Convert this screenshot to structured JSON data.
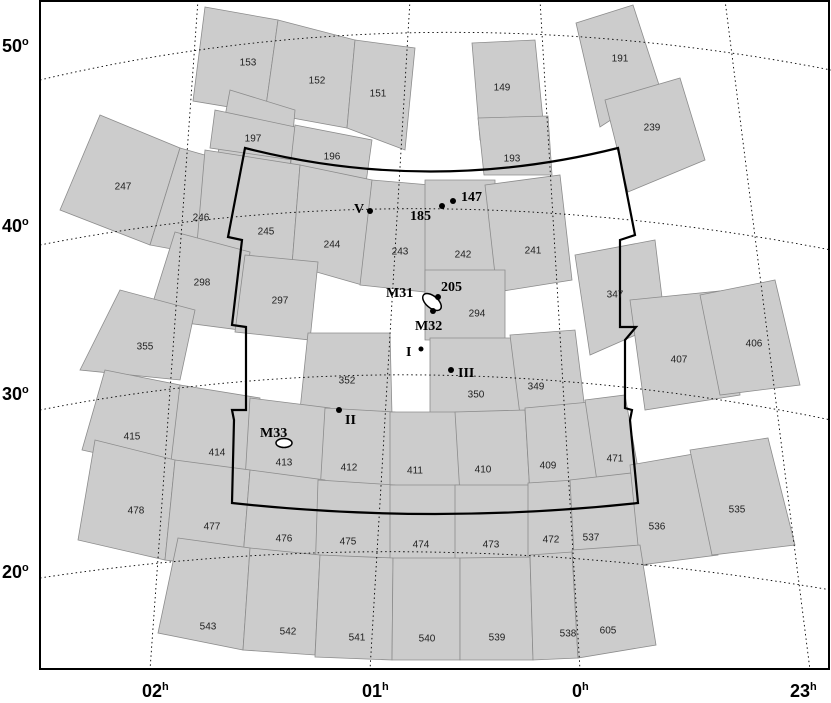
{
  "fields": [
    "153",
    "152",
    "151",
    "149",
    "191",
    "197",
    "196",
    "193",
    "239",
    "247",
    "246",
    "245",
    "244",
    "243",
    "242",
    "241",
    "185",
    "147",
    "205",
    "298",
    "297",
    "294",
    "347",
    "355",
    "352",
    "350",
    "349",
    "407",
    "406",
    "415",
    "414",
    "413",
    "412",
    "411",
    "410",
    "409",
    "471",
    "478",
    "477",
    "476",
    "475",
    "474",
    "473",
    "472",
    "537",
    "536",
    "535",
    "543",
    "542",
    "541",
    "540",
    "539",
    "538",
    "605"
  ],
  "objects": {
    "m31": "M31",
    "m32": "M32",
    "m33": "M33",
    "sat_i": "I",
    "sat_ii": "II",
    "sat_iii": "III",
    "sat_v": "V",
    "f185": "185",
    "f147": "147",
    "f205": "205"
  },
  "axes": {
    "dec_labels": [
      {
        "base": "50",
        "sup": "o"
      },
      {
        "base": "40",
        "sup": "o"
      },
      {
        "base": "30",
        "sup": "o"
      },
      {
        "base": "20",
        "sup": "o"
      }
    ],
    "ra_labels": [
      {
        "base": "02",
        "sup": "h"
      },
      {
        "base": "01",
        "sup": "h"
      },
      {
        "base": "0",
        "sup": "h"
      },
      {
        "base": "23",
        "sup": "h"
      }
    ]
  },
  "colors": {
    "field_fill": "#cccccc",
    "field_stroke": "#8c8c8c",
    "outline": "#000000"
  }
}
